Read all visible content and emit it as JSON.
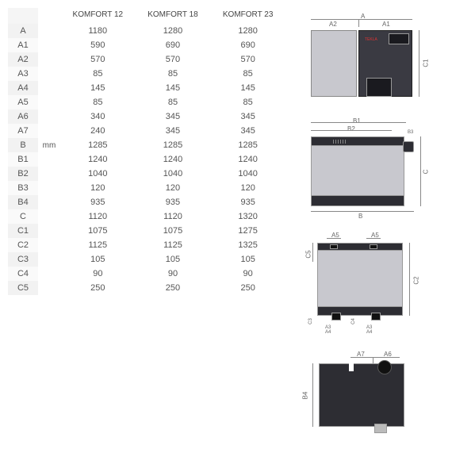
{
  "table": {
    "columns": [
      "KOMFORT 12",
      "KOMFORT 18",
      "KOMFORT 23"
    ],
    "unit": "mm",
    "unit_row_index": 8,
    "row_label_bg_colors": [
      "#f2f2f2",
      "#fafafa"
    ],
    "rows": [
      {
        "label": "A",
        "values": [
          "1180",
          "1280",
          "1280"
        ]
      },
      {
        "label": "A1",
        "values": [
          "590",
          "690",
          "690"
        ]
      },
      {
        "label": "A2",
        "values": [
          "570",
          "570",
          "570"
        ]
      },
      {
        "label": "A3",
        "values": [
          "85",
          "85",
          "85"
        ]
      },
      {
        "label": "A4",
        "values": [
          "145",
          "145",
          "145"
        ]
      },
      {
        "label": "A5",
        "values": [
          "85",
          "85",
          "85"
        ]
      },
      {
        "label": "A6",
        "values": [
          "340",
          "345",
          "345"
        ]
      },
      {
        "label": "A7",
        "values": [
          "240",
          "345",
          "345"
        ]
      },
      {
        "label": "B",
        "values": [
          "1285",
          "1285",
          "1285"
        ]
      },
      {
        "label": "B1",
        "values": [
          "1240",
          "1240",
          "1240"
        ]
      },
      {
        "label": "B2",
        "values": [
          "1040",
          "1040",
          "1040"
        ]
      },
      {
        "label": "B3",
        "values": [
          "120",
          "120",
          "120"
        ]
      },
      {
        "label": "B4",
        "values": [
          "935",
          "935",
          "935"
        ]
      },
      {
        "label": "C",
        "values": [
          "1120",
          "1120",
          "1320"
        ]
      },
      {
        "label": "C1",
        "values": [
          "1075",
          "1075",
          "1275"
        ]
      },
      {
        "label": "C2",
        "values": [
          "1125",
          "1125",
          "1325"
        ]
      },
      {
        "label": "C3",
        "values": [
          "105",
          "105",
          "105"
        ]
      },
      {
        "label": "C4",
        "values": [
          "90",
          "90",
          "90"
        ]
      },
      {
        "label": "C5",
        "values": [
          "250",
          "250",
          "250"
        ]
      }
    ]
  },
  "diagrams": {
    "view1": {
      "top_labels": [
        "A2",
        "A",
        "A1"
      ],
      "right_label": "C1",
      "body_color": "#3a3a42",
      "hopper_color": "#c8c8ce",
      "brand": "TEKLA"
    },
    "view2": {
      "top_labels": [
        "B1",
        "B2",
        "B3"
      ],
      "right_label": "C",
      "bottom_label": "B",
      "body_color": "#c8c8ce",
      "dark_color": "#2d2d33"
    },
    "view3": {
      "top_labels": [
        "A5",
        "A5"
      ],
      "left_label": "C5",
      "right_label": "C2",
      "bottom_labels": [
        "C3",
        "A3",
        "A4",
        "C4",
        "A3",
        "A4"
      ],
      "body_color": "#c8c8ce",
      "dark_color": "#2d2d33"
    },
    "view4": {
      "top_labels": [
        "A7",
        "A6"
      ],
      "left_label": "B4",
      "body_color": "#2d2d33"
    }
  }
}
